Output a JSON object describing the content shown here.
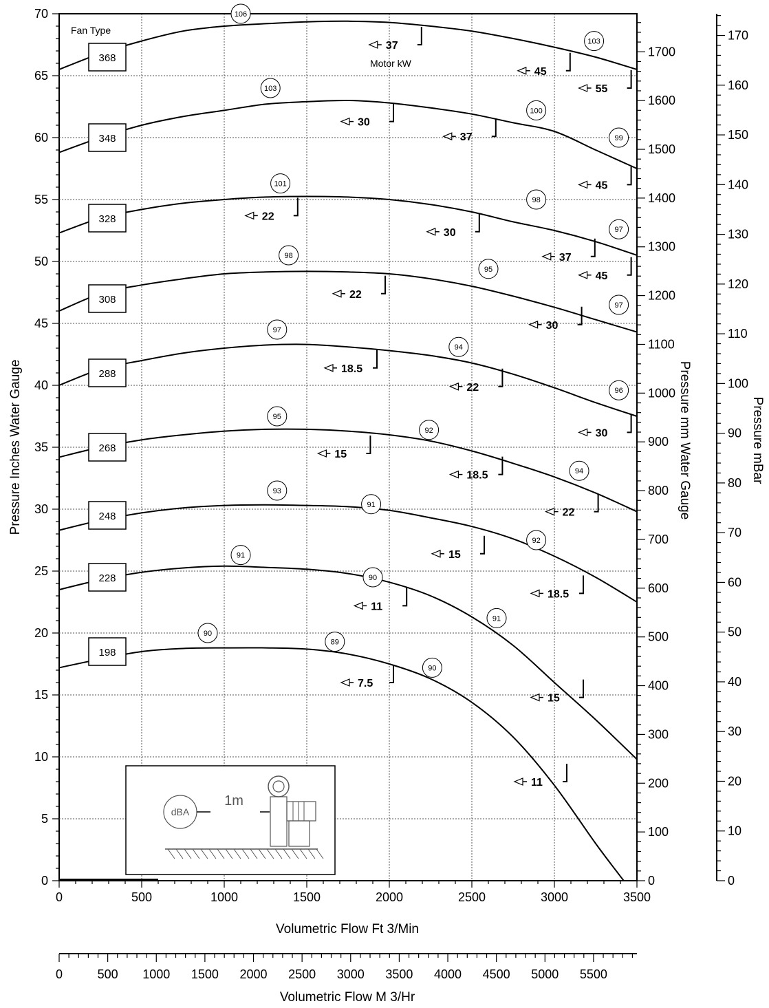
{
  "chart_data": {
    "type": "line",
    "title": "",
    "xlabel": "Volumetric Flow Ft 3/Min",
    "x2label": "Volumetric Flow M 3/Hr",
    "ylabel": "Pressure Inches Water Gauge",
    "y2label": "Pressure mm Water Gauge",
    "y3label": "Pressure mBar",
    "fan_type_label": "Fan Type",
    "motor_kw_label": "Motor kW",
    "xlim": [
      0,
      3500
    ],
    "ylim": [
      0,
      70
    ],
    "x_ticks": [
      "0",
      "500",
      "1000",
      "1500",
      "2000",
      "2500",
      "3000",
      "3500"
    ],
    "x2_ticks": [
      "0",
      "500",
      "1000",
      "1500",
      "2000",
      "2500",
      "3000",
      "3500",
      "4000",
      "4500",
      "5000",
      "5500"
    ],
    "y_ticks": [
      "0",
      "5",
      "10",
      "15",
      "20",
      "25",
      "30",
      "35",
      "40",
      "45",
      "50",
      "55",
      "60",
      "65",
      "70"
    ],
    "y2_ticks": [
      "0",
      "100",
      "200",
      "300",
      "400",
      "500",
      "600",
      "700",
      "800",
      "900",
      "1000",
      "1100",
      "1200",
      "1300",
      "1400",
      "1500",
      "1600",
      "1700"
    ],
    "y3_ticks": [
      "0",
      "10",
      "20",
      "30",
      "40",
      "50",
      "60",
      "70",
      "80",
      "90",
      "100",
      "110",
      "120",
      "130",
      "140",
      "150",
      "160",
      "170"
    ],
    "series": [
      {
        "name": "198",
        "fan_label_y": 18.5,
        "x": [
          0,
          250,
          500,
          750,
          1000,
          1250,
          1500,
          1750,
          2000,
          2250,
          2500,
          2750,
          3000,
          3250,
          3420
        ],
        "y": [
          17.2,
          17.9,
          18.5,
          18.75,
          18.8,
          18.8,
          18.7,
          18.3,
          17.5,
          16.3,
          14.4,
          11.6,
          7.7,
          3.0,
          0
        ],
        "db": [
          {
            "x": 900,
            "y": 20,
            "v": "90"
          },
          {
            "x": 1670,
            "y": 19.3,
            "v": "89"
          },
          {
            "x": 2260,
            "y": 17.2,
            "v": "90"
          }
        ],
        "motors": [
          {
            "x": 1900,
            "y": 16,
            "v": "7.5"
          },
          {
            "x": 2950,
            "y": 8,
            "v": "11"
          }
        ]
      },
      {
        "name": "228",
        "fan_label_y": 24.5,
        "x": [
          0,
          250,
          500,
          750,
          1000,
          1250,
          1500,
          1750,
          2000,
          2250,
          2500,
          2750,
          3000,
          3250,
          3500
        ],
        "y": [
          23.5,
          24.3,
          24.9,
          25.25,
          25.4,
          25.3,
          25.15,
          24.8,
          24.1,
          23.0,
          21.3,
          19.0,
          16.0,
          13.0,
          9.8
        ],
        "db": [
          {
            "x": 1100,
            "y": 26.3,
            "v": "91"
          },
          {
            "x": 1900,
            "y": 24.5,
            "v": "90"
          },
          {
            "x": 2650,
            "y": 21.2,
            "v": "91"
          }
        ],
        "motors": [
          {
            "x": 1980,
            "y": 22.2,
            "v": "11"
          },
          {
            "x": 3050,
            "y": 14.8,
            "v": "15"
          }
        ]
      },
      {
        "name": "248",
        "fan_label_y": 29.5,
        "x": [
          0,
          250,
          500,
          750,
          1000,
          1250,
          1500,
          1750,
          2000,
          2250,
          2500,
          2750,
          3000,
          3250,
          3500
        ],
        "y": [
          28.3,
          29.1,
          29.7,
          30.1,
          30.3,
          30.35,
          30.3,
          30.2,
          29.9,
          29.3,
          28.6,
          27.6,
          26.2,
          24.5,
          22.5
        ],
        "db": [
          {
            "x": 1320,
            "y": 31.5,
            "v": "93"
          },
          {
            "x": 1890,
            "y": 30.4,
            "v": "91"
          },
          {
            "x": 2890,
            "y": 27.5,
            "v": "92"
          }
        ],
        "motors": [
          {
            "x": 2450,
            "y": 26.4,
            "v": "15"
          },
          {
            "x": 3050,
            "y": 23.2,
            "v": "18.5"
          }
        ]
      },
      {
        "name": "268",
        "fan_label_y": 35.0,
        "x": [
          0,
          250,
          500,
          750,
          1000,
          1250,
          1500,
          1750,
          2000,
          2250,
          2500,
          2750,
          3000,
          3250,
          3500
        ],
        "y": [
          34.2,
          35.0,
          35.6,
          36.0,
          36.3,
          36.45,
          36.45,
          36.3,
          36.0,
          35.5,
          34.7,
          33.7,
          32.6,
          31.3,
          29.8
        ],
        "db": [
          {
            "x": 1320,
            "y": 37.5,
            "v": "95"
          },
          {
            "x": 2240,
            "y": 36.4,
            "v": "92"
          },
          {
            "x": 3150,
            "y": 33.1,
            "v": "94"
          }
        ],
        "motors": [
          {
            "x": 1760,
            "y": 34.5,
            "v": "15"
          },
          {
            "x": 2560,
            "y": 32.8,
            "v": "18.5"
          },
          {
            "x": 3140,
            "y": 29.8,
            "v": "22"
          }
        ]
      },
      {
        "name": "288",
        "fan_label_y": 41.0,
        "x": [
          0,
          250,
          500,
          750,
          1000,
          1250,
          1500,
          1750,
          2000,
          2250,
          2500,
          2750,
          3000,
          3250,
          3500
        ],
        "y": [
          40.0,
          41.3,
          42.0,
          42.6,
          43.0,
          43.25,
          43.3,
          43.1,
          42.8,
          42.4,
          41.8,
          40.9,
          39.8,
          38.6,
          37.5
        ],
        "db": [
          {
            "x": 1320,
            "y": 44.5,
            "v": "97"
          },
          {
            "x": 2420,
            "y": 43.1,
            "v": "94"
          },
          {
            "x": 3390,
            "y": 39.6,
            "v": "96"
          }
        ],
        "motors": [
          {
            "x": 1800,
            "y": 41.4,
            "v": "18.5"
          },
          {
            "x": 2560,
            "y": 39.9,
            "v": "22"
          },
          {
            "x": 3340,
            "y": 36.2,
            "v": "30"
          }
        ]
      },
      {
        "name": "308",
        "fan_label_y": 47.0,
        "x": [
          0,
          250,
          500,
          750,
          1000,
          1250,
          1500,
          1750,
          2000,
          2250,
          2500,
          2750,
          3000,
          3250,
          3500
        ],
        "y": [
          46.0,
          47.4,
          48.1,
          48.6,
          49.0,
          49.15,
          49.2,
          49.15,
          49.0,
          48.6,
          48.0,
          47.2,
          46.3,
          45.3,
          44.3
        ],
        "db": [
          {
            "x": 1390,
            "y": 50.5,
            "v": "98"
          },
          {
            "x": 2600,
            "y": 49.4,
            "v": "95"
          },
          {
            "x": 3390,
            "y": 46.5,
            "v": "97"
          }
        ],
        "motors": [
          {
            "x": 1850,
            "y": 47.4,
            "v": "22"
          },
          {
            "x": 3040,
            "y": 44.9,
            "v": "30"
          },
          {
            "x": 3340,
            "y": 48.9,
            "v": "45"
          }
        ]
      },
      {
        "name": "328",
        "fan_label_y": 53.5,
        "x": [
          0,
          250,
          500,
          750,
          1000,
          1250,
          1500,
          1750,
          2000,
          2250,
          2500,
          2750,
          3000,
          3250,
          3500
        ],
        "y": [
          52.3,
          53.5,
          54.2,
          54.7,
          55.0,
          55.2,
          55.25,
          55.2,
          55.0,
          54.6,
          54.0,
          53.2,
          52.5,
          51.6,
          50.5
        ],
        "db": [
          {
            "x": 1340,
            "y": 56.3,
            "v": "101"
          },
          {
            "x": 2890,
            "y": 55.0,
            "v": "98"
          },
          {
            "x": 3390,
            "y": 52.6,
            "v": "97"
          }
        ],
        "motors": [
          {
            "x": 1320,
            "y": 53.7,
            "v": "22"
          },
          {
            "x": 2420,
            "y": 52.4,
            "v": "30"
          },
          {
            "x": 3120,
            "y": 50.4,
            "v": "37"
          },
          {
            "x": 3340,
            "y": 56.2,
            "v": "45"
          }
        ]
      },
      {
        "name": "348",
        "fan_label_y": 60.0,
        "x": [
          0,
          250,
          500,
          750,
          1000,
          1250,
          1500,
          1750,
          2000,
          2250,
          2500,
          2750,
          3000,
          3250,
          3500
        ],
        "y": [
          58.8,
          60.0,
          61.0,
          61.7,
          62.2,
          62.7,
          62.9,
          63.0,
          62.8,
          62.4,
          61.9,
          61.2,
          60.5,
          59.0,
          57.5
        ],
        "db": [
          {
            "x": 1280,
            "y": 64.0,
            "v": "103"
          },
          {
            "x": 2890,
            "y": 62.2,
            "v": "100"
          },
          {
            "x": 3390,
            "y": 60.0,
            "v": "99"
          }
        ],
        "motors": [
          {
            "x": 1900,
            "y": 61.3,
            "v": "30"
          },
          {
            "x": 2520,
            "y": 60.1,
            "v": "37"
          },
          {
            "x": 3340,
            "y": 64.0,
            "v": "55"
          }
        ]
      },
      {
        "name": "368",
        "fan_label_y": 66.5,
        "x": [
          0,
          250,
          500,
          750,
          1000,
          1250,
          1500,
          1750,
          2000,
          2250,
          2500,
          2750,
          3000,
          3250,
          3500
        ],
        "y": [
          65.5,
          66.8,
          67.8,
          68.6,
          69.0,
          69.2,
          69.35,
          69.4,
          69.3,
          69.0,
          68.6,
          68.0,
          67.3,
          66.5,
          65.5
        ],
        "db": [
          {
            "x": 1100,
            "y": 70.0,
            "v": "106"
          },
          {
            "x": 3240,
            "y": 67.8,
            "v": "103"
          }
        ],
        "motors": [
          {
            "x": 2070,
            "y": 67.5,
            "v": "37"
          },
          {
            "x": 2970,
            "y": 65.4,
            "v": "45"
          }
        ]
      }
    ],
    "grid": true,
    "legend": "none"
  }
}
